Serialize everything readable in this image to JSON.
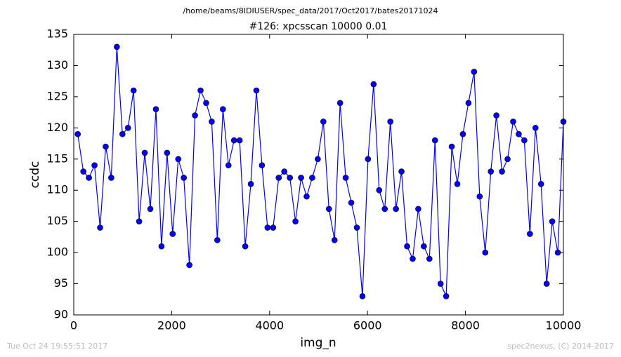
{
  "chart_data": {
    "type": "line",
    "suptitle": "/home/beams/8IDIUSER/spec_data/2017/Oct2017/bates20171024",
    "title": "#126: xpcsscan 10000 0.01",
    "x_label": "img_n",
    "y_label": "ccdc",
    "footer_left": "Tue Oct 24 19:55:51 2017",
    "footer_right": "spec2nexus, (C) 2014-2017",
    "x": [
      82,
      196,
      310,
      424,
      538,
      652,
      766,
      880,
      994,
      1108,
      1222,
      1336,
      1450,
      1564,
      1678,
      1792,
      1906,
      2020,
      2134,
      2248,
      2362,
      2476,
      2590,
      2704,
      2818,
      2932,
      3046,
      3160,
      3274,
      3388,
      3502,
      3616,
      3730,
      3844,
      3958,
      4072,
      4186,
      4300,
      4414,
      4528,
      4642,
      4756,
      4870,
      4984,
      5098,
      5212,
      5326,
      5440,
      5554,
      5668,
      5782,
      5896,
      6010,
      6124,
      6238,
      6352,
      6466,
      6580,
      6694,
      6808,
      6922,
      7036,
      7150,
      7264,
      7378,
      7492,
      7606,
      7720,
      7834,
      7948,
      8062,
      8176,
      8290,
      8404,
      8518,
      8632,
      8746,
      8860,
      8974,
      9088,
      9202,
      9316,
      9430,
      9544,
      9658,
      9772,
      9886,
      10000
    ],
    "series": [
      {
        "name": "ccdc",
        "color": "#0000ff",
        "marker_edge": "#000000",
        "values": [
          119,
          113,
          112,
          114,
          104,
          117,
          112,
          133,
          119,
          120,
          126,
          105,
          116,
          107,
          123,
          101,
          116,
          103,
          115,
          112,
          98,
          122,
          126,
          124,
          121,
          102,
          123,
          114,
          118,
          118,
          101,
          111,
          126,
          114,
          104,
          104,
          112,
          113,
          112,
          105,
          112,
          109,
          112,
          115,
          121,
          107,
          102,
          124,
          112,
          108,
          104,
          93,
          115,
          127,
          110,
          107,
          121,
          107,
          113,
          101,
          99,
          107,
          101,
          99,
          118,
          95,
          93,
          117,
          111,
          119,
          124,
          129,
          109,
          100,
          113,
          122,
          113,
          115,
          121,
          119,
          118,
          103,
          120,
          111,
          95,
          105,
          100,
          121
        ]
      }
    ],
    "xlim": [
      0,
      10000
    ],
    "xticks": [
      0,
      2000,
      4000,
      6000,
      8000,
      10000
    ],
    "ylim": [
      90,
      135
    ],
    "yticks": [
      90,
      95,
      100,
      105,
      110,
      115,
      120,
      125,
      130,
      135
    ],
    "grid": false
  }
}
